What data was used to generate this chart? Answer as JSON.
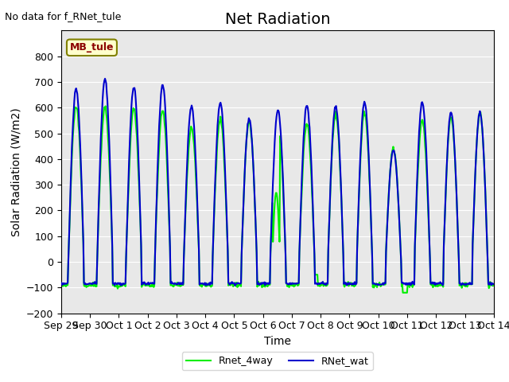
{
  "title": "Net Radiation",
  "xlabel": "Time",
  "ylabel": "Solar Radiation (W/m2)",
  "annotation": "No data for f_RNet_tule",
  "legend_box_label": "MB_tule",
  "ylim": [
    -200,
    900
  ],
  "yticks": [
    -200,
    -100,
    0,
    100,
    200,
    300,
    400,
    500,
    600,
    700,
    800
  ],
  "xtick_labels": [
    "Sep 29",
    "Sep 30",
    "Oct 1",
    "Oct 2",
    "Oct 3",
    "Oct 4",
    "Oct 5",
    "Oct 6",
    "Oct 7",
    "Oct 8",
    "Oct 9",
    "Oct 10",
    "Oct 11",
    "Oct 12",
    "Oct 13",
    "Oct 14"
  ],
  "line1_color": "#0000cd",
  "line2_color": "#00ee00",
  "line1_label": "RNet_wat",
  "line2_label": "Rnet_4way",
  "line_width": 1.5,
  "bg_color": "#e8e8e8",
  "title_fontsize": 14,
  "label_fontsize": 10,
  "tick_fontsize": 9,
  "peak_blue": [
    670,
    710,
    680,
    690,
    605,
    620,
    555,
    590,
    610,
    605,
    620,
    435,
    620,
    580,
    580
  ],
  "peak_green": [
    605,
    600,
    595,
    590,
    520,
    555,
    550,
    540,
    535,
    575,
    580,
    440,
    550,
    565,
    580
  ],
  "night_val_blue": -85,
  "night_val_green": -90,
  "n_days": 15,
  "points_per_day": 48
}
